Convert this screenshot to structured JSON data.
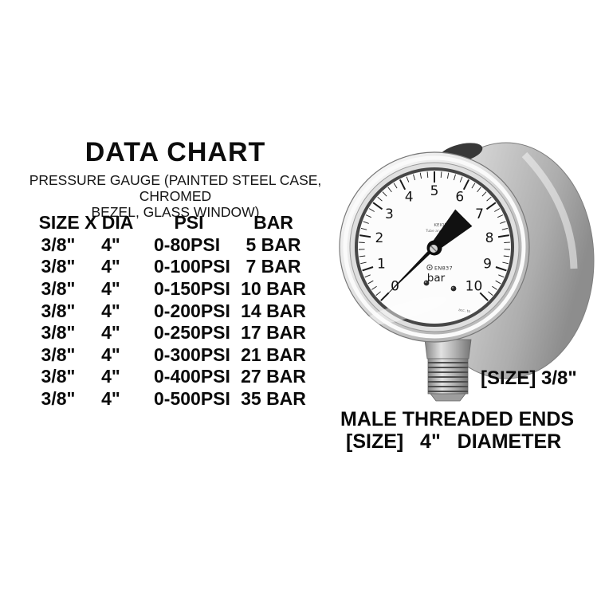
{
  "page": {
    "background": "#ffffff"
  },
  "data_chart": {
    "title": "DATA CHART",
    "subtitle_line1": "PRESSURE GAUGE (PAINTED STEEL CASE, CHROMED",
    "subtitle_line2": "BEZEL, GLASS WINDOW)",
    "table": {
      "headers": {
        "size_dia": "SIZE X DIA",
        "psi": "PSI",
        "bar": "BAR"
      },
      "rows": [
        {
          "size": "3/8\"",
          "dia": "4\"",
          "psi": "0-80PSI",
          "bar": "5 BAR"
        },
        {
          "size": "3/8\"",
          "dia": "4\"",
          "psi": "0-100PSI",
          "bar": "7 BAR"
        },
        {
          "size": "3/8\"",
          "dia": "4\"",
          "psi": "0-150PSI",
          "bar": "10 BAR"
        },
        {
          "size": "3/8\"",
          "dia": "4\"",
          "psi": "0-200PSI",
          "bar": "14 BAR"
        },
        {
          "size": "3/8\"",
          "dia": "4\"",
          "psi": "0-250PSI",
          "bar": "17 BAR"
        },
        {
          "size": "3/8\"",
          "dia": "4\"",
          "psi": "0-300PSI",
          "bar": "21 BAR"
        },
        {
          "size": "3/8\"",
          "dia": "4\"",
          "psi": "0-400PSI",
          "bar": "27 BAR"
        },
        {
          "size": "3/8\"",
          "dia": "4\"",
          "psi": "0-500PSI",
          "bar": "35 BAR"
        }
      ]
    }
  },
  "gauge": {
    "dial_numbers": [
      "0",
      "1",
      "2",
      "3",
      "4",
      "5",
      "6",
      "7",
      "8",
      "9",
      "10"
    ],
    "unit_label": "bar",
    "standard_label": "EN837",
    "brand_line1": "KEION",
    "brand_line2": "Tube and Bronze",
    "acc_note": "acc. to",
    "scale": {
      "min": 0,
      "max": 10,
      "minor_step": 0.2,
      "start_angle": 135,
      "sweep": 270
    },
    "colors": {
      "dial": "#fcfcfc",
      "markings": "#1b1b1b",
      "needle": "#111111",
      "case": "#b5b5b5"
    }
  },
  "annotations": {
    "thread_size_label": "[SIZE] 3/8\"",
    "male_threaded_label": "MALE THREADED ENDS",
    "diameter_label": "[SIZE]   4\"   DIAMETER"
  }
}
